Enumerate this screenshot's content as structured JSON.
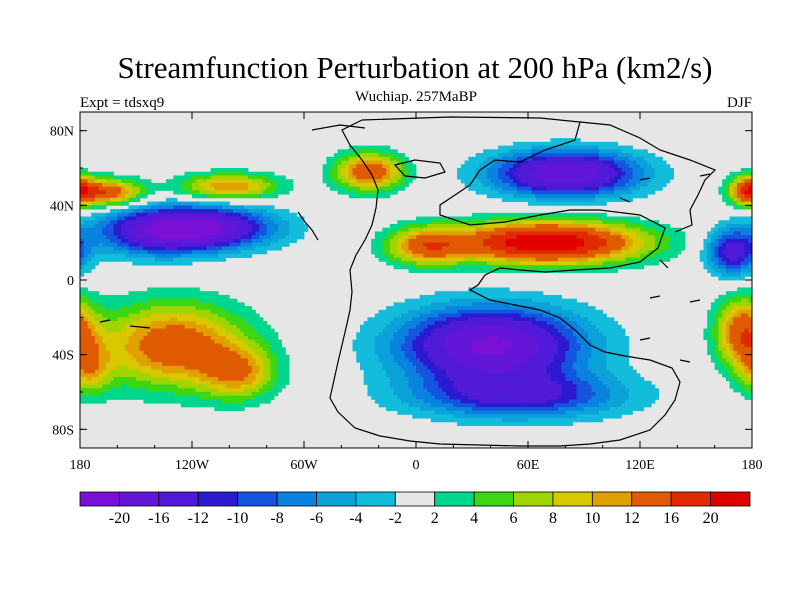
{
  "header": {
    "title": "Streamfunction Perturbation at 200 hPa (km2/s)",
    "subtitle": "Wuchiap. 257MaBP",
    "left_label": "Expt = tdsxq9",
    "right_label": "DJF"
  },
  "chart_data": {
    "type": "heatmap",
    "title": "Streamfunction Perturbation at 200 hPa (km2/s)",
    "subtitle": "Wuchiap. 257MaBP",
    "xlim": [
      -180,
      180
    ],
    "ylim": [
      -90,
      90
    ],
    "x_ticks": [
      {
        "value": -180,
        "label": "180"
      },
      {
        "value": -120,
        "label": "120W"
      },
      {
        "value": -60,
        "label": "60W"
      },
      {
        "value": 0,
        "label": "0"
      },
      {
        "value": 60,
        "label": "60E"
      },
      {
        "value": 120,
        "label": "120E"
      },
      {
        "value": 180,
        "label": "180"
      }
    ],
    "y_ticks": [
      {
        "value": 80,
        "label": "80N"
      },
      {
        "value": 40,
        "label": "40N"
      },
      {
        "value": 0,
        "label": "0"
      },
      {
        "value": -40,
        "label": "40S"
      },
      {
        "value": -80,
        "label": "80S"
      }
    ],
    "colorbar": {
      "boundaries": [
        "-20",
        "-16",
        "-12",
        "-10",
        "-8",
        "-6",
        "-4",
        "-2",
        "2",
        "4",
        "6",
        "8",
        "10",
        "12",
        "16",
        "20"
      ],
      "colors": [
        "#7a10d6",
        "#6316d8",
        "#501ad8",
        "#2b1ad0",
        "#1454de",
        "#0a82e0",
        "#0aa2d8",
        "#14bcdc",
        "#e6e6e6",
        "#00d68c",
        "#3cd614",
        "#a0d400",
        "#d8c800",
        "#e0a000",
        "#e05a00",
        "#e02a00",
        "#e00000"
      ]
    },
    "features": [
      {
        "lon": -120,
        "lat": 28,
        "amp": -22,
        "sx": 40,
        "sy": 11
      },
      {
        "lon": -140,
        "lat": 22,
        "amp": -6,
        "sx": 30,
        "sy": 12
      },
      {
        "lon": 170,
        "lat": 15,
        "amp": -14,
        "sx": 14,
        "sy": 12
      },
      {
        "lon": 70,
        "lat": 20,
        "amp": 24,
        "sx": 50,
        "sy": 11
      },
      {
        "lon": 5,
        "lat": 18,
        "amp": 12,
        "sx": 20,
        "sy": 10
      },
      {
        "lon": 80,
        "lat": 57,
        "amp": -20,
        "sx": 38,
        "sy": 12
      },
      {
        "lon": -25,
        "lat": 58,
        "amp": 15,
        "sx": 18,
        "sy": 10
      },
      {
        "lon": -165,
        "lat": 47,
        "amp": 15,
        "sx": 18,
        "sy": 7
      },
      {
        "lon": -100,
        "lat": 50,
        "amp": 12,
        "sx": 26,
        "sy": 7
      },
      {
        "lon": 178,
        "lat": 48,
        "amp": 15,
        "sx": 10,
        "sy": 8
      },
      {
        "lon": -130,
        "lat": -35,
        "amp": 15,
        "sx": 38,
        "sy": 22
      },
      {
        "lon": -95,
        "lat": -50,
        "amp": 10,
        "sx": 20,
        "sy": 14
      },
      {
        "lon": -175,
        "lat": -48,
        "amp": 8,
        "sx": 12,
        "sy": 14
      },
      {
        "lon": 40,
        "lat": -35,
        "amp": -21,
        "sx": 48,
        "sy": 20
      },
      {
        "lon": 55,
        "lat": -62,
        "amp": -12,
        "sx": 55,
        "sy": 12
      },
      {
        "lon": 175,
        "lat": -28,
        "amp": 14,
        "sx": 14,
        "sy": 18
      }
    ]
  }
}
